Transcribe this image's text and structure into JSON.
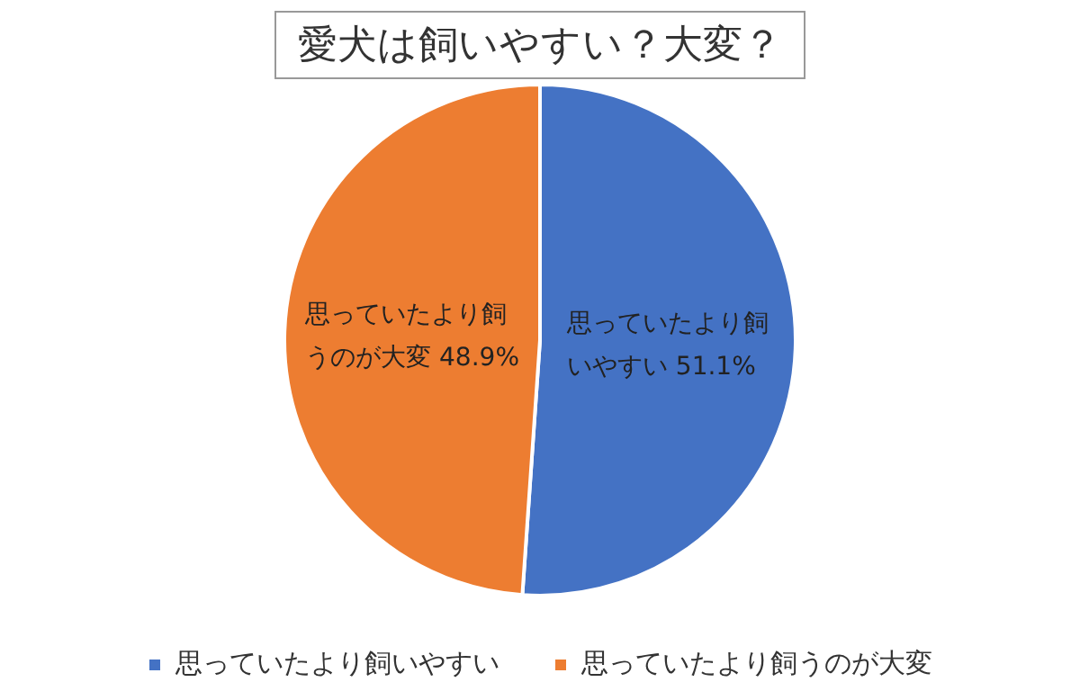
{
  "chart_data": {
    "type": "pie",
    "title": "愛犬は飼いやすい？大変？",
    "categories": [
      "思っていたより飼いやすい",
      "思っていたより飼うのが大変"
    ],
    "values": [
      51.1,
      48.9
    ],
    "colors": [
      "#4472c4",
      "#ed7d31"
    ],
    "value_labels": [
      "51.1%",
      "48.9%"
    ],
    "legend": "bottom"
  }
}
